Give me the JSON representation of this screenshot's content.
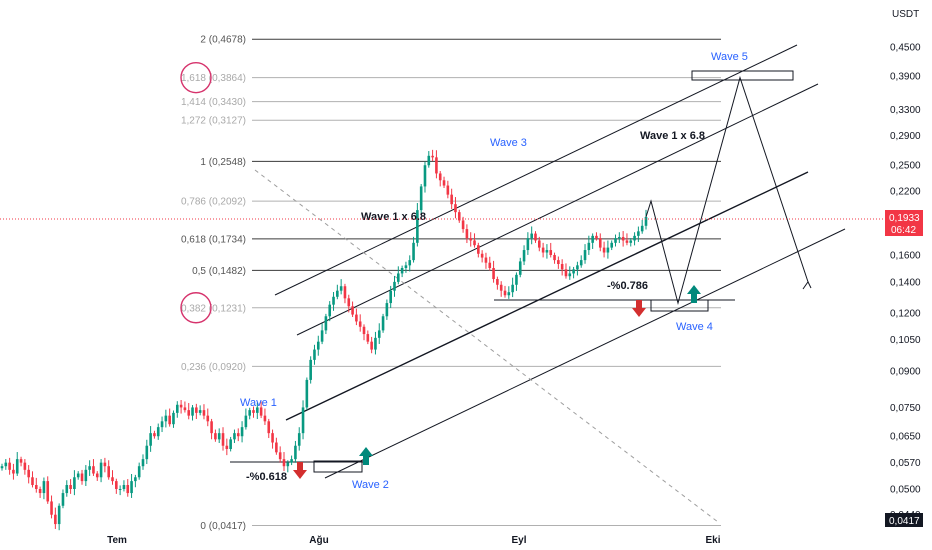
{
  "currency": "USDT",
  "colors": {
    "bull": "#089981",
    "bear": "#f23645",
    "price_badge": "#f23645",
    "wave_label": "#2962ff",
    "line": "#131722",
    "circle": "#d6336c"
  },
  "current_price": {
    "value": "0,1933",
    "countdown": "06:42"
  },
  "low_price_badge": "0,0417",
  "chart_data": {
    "type": "candlestick",
    "x_ticks": [
      "Tem",
      "Ağu",
      "Eyl",
      "Eki"
    ],
    "y_ticks": [
      "0,4500",
      "0,3900",
      "0,3300",
      "0,2900",
      "0,2500",
      "0,2200",
      "0,1600",
      "0,1400",
      "0,1200",
      "0,1050",
      "0,0900",
      "0,0750",
      "0,0650",
      "0,0570",
      "0,0500",
      "0,0440"
    ],
    "y_scale": "log",
    "ylim": [
      0.0417,
      0.5
    ],
    "fib_levels": [
      {
        "ratio": "2",
        "price": "0,4678",
        "label": "2 (0,4678)",
        "value": 0.4678
      },
      {
        "ratio": "1,618",
        "price": "0,3864",
        "label": "1,618 (0,3864)",
        "value": 0.3864,
        "circled": true
      },
      {
        "ratio": "1,414",
        "price": "0,3430",
        "label": "1,414 (0,3430)",
        "value": 0.343
      },
      {
        "ratio": "1,272",
        "price": "0,3127",
        "label": "1,272 (0,3127)",
        "value": 0.3127
      },
      {
        "ratio": "1",
        "price": "0,2548",
        "label": "1 (0,2548)",
        "value": 0.2548
      },
      {
        "ratio": "0,786",
        "price": "0,2092",
        "label": "0,786 (0,2092)",
        "value": 0.2092
      },
      {
        "ratio": "0,618",
        "price": "0,1734",
        "label": "0,618 (0,1734)",
        "value": 0.1734
      },
      {
        "ratio": "0,5",
        "price": "0,1482",
        "label": "0,5 (0,1482)",
        "value": 0.1482
      },
      {
        "ratio": "0,382",
        "price": "0,1231",
        "label": "0,382 (0,1231)",
        "value": 0.1231,
        "circled": true
      },
      {
        "ratio": "0,236",
        "price": "0,0920",
        "label": "0,236 (0,0920)",
        "value": 0.092
      },
      {
        "ratio": "0",
        "price": "0,0417",
        "label": "0 (0,0417)",
        "value": 0.0417
      }
    ],
    "annotations": {
      "wave1": "Wave 1",
      "wave2": "Wave 2",
      "wave3": "Wave 3",
      "wave4": "Wave 4",
      "wave5": "Wave 5",
      "ext_a": "Wave 1 x 6.8",
      "ext_b": "Wave 1 x 6.8",
      "pct_a": "-%0.618",
      "pct_b": "-%0.786"
    },
    "price_path_closes": [
      0.056,
      0.057,
      0.055,
      0.054,
      0.058,
      0.057,
      0.055,
      0.053,
      0.051,
      0.05,
      0.049,
      0.052,
      0.047,
      0.044,
      0.042,
      0.046,
      0.049,
      0.051,
      0.05,
      0.053,
      0.054,
      0.052,
      0.055,
      0.056,
      0.054,
      0.053,
      0.057,
      0.056,
      0.053,
      0.052,
      0.05,
      0.05,
      0.051,
      0.049,
      0.052,
      0.053,
      0.056,
      0.058,
      0.062,
      0.066,
      0.065,
      0.068,
      0.07,
      0.072,
      0.069,
      0.073,
      0.076,
      0.075,
      0.074,
      0.072,
      0.075,
      0.073,
      0.074,
      0.072,
      0.07,
      0.066,
      0.064,
      0.066,
      0.062,
      0.061,
      0.064,
      0.066,
      0.065,
      0.068,
      0.072,
      0.074,
      0.073,
      0.075,
      0.072,
      0.07,
      0.066,
      0.063,
      0.06,
      0.058,
      0.056,
      0.057,
      0.058,
      0.062,
      0.066,
      0.075,
      0.086,
      0.095,
      0.1,
      0.104,
      0.11,
      0.118,
      0.125,
      0.13,
      0.134,
      0.137,
      0.129,
      0.124,
      0.119,
      0.115,
      0.112,
      0.108,
      0.104,
      0.1,
      0.106,
      0.11,
      0.118,
      0.126,
      0.134,
      0.14,
      0.146,
      0.15,
      0.152,
      0.156,
      0.17,
      0.2,
      0.225,
      0.25,
      0.262,
      0.26,
      0.24,
      0.232,
      0.226,
      0.216,
      0.206,
      0.198,
      0.19,
      0.182,
      0.174,
      0.172,
      0.168,
      0.161,
      0.158,
      0.154,
      0.15,
      0.142,
      0.138,
      0.134,
      0.131,
      0.133,
      0.138,
      0.145,
      0.155,
      0.164,
      0.174,
      0.178,
      0.172,
      0.166,
      0.162,
      0.164,
      0.16,
      0.156,
      0.153,
      0.149,
      0.144,
      0.146,
      0.149,
      0.152,
      0.156,
      0.164,
      0.17,
      0.176,
      0.174,
      0.166,
      0.162,
      0.166,
      0.17,
      0.174,
      0.175,
      0.172,
      0.17,
      0.172,
      0.176,
      0.18,
      0.185,
      0.1933
    ],
    "projection": [
      0.2092,
      0.126,
      0.3864,
      0.14
    ]
  }
}
